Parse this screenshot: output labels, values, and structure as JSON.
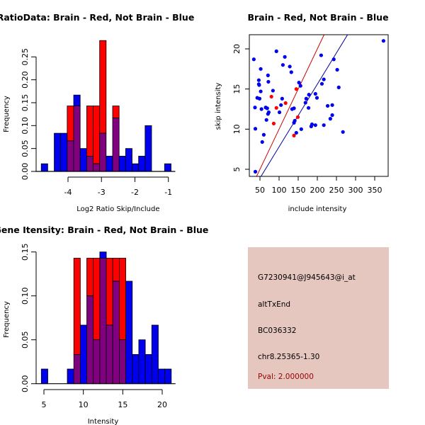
{
  "colors": {
    "brain": "#ff0000",
    "not_brain": "#0000ee",
    "overlap": "#800080",
    "panel_bg": "#e5c7c0",
    "pval_text": "#990000",
    "brain_line": "#cc0000",
    "not_brain_line": "#000099"
  },
  "chart_data": [
    {
      "id": "ratio-hist",
      "type": "bar",
      "title": "RatioData: Brain - Red, Not Brain - Blue",
      "xlabel": "Log2 Ratio Skip/Include",
      "ylabel": "Frequency",
      "xlim": [
        -4.8,
        -0.92
      ],
      "ylim": [
        0,
        0.29
      ],
      "xticks": [
        "-4",
        "-3",
        "-2",
        "-1"
      ],
      "xtick_values": [
        -4,
        -3,
        -2,
        -1
      ],
      "yticks": [
        "0.00",
        "0.05",
        "0.10",
        "0.15",
        "0.20",
        "0.25"
      ],
      "ytick_values": [
        0,
        0.05,
        0.1,
        0.15,
        0.2,
        0.25
      ],
      "bin_start": -4.8,
      "bin_width": 0.194,
      "series": [
        {
          "name": "Not Brain",
          "color": "blue",
          "values": [
            0.0167,
            0,
            0.0833,
            0.0833,
            0.0667,
            0.1667,
            0.05,
            0.0333,
            0.0167,
            0.0833,
            0.0333,
            0.1167,
            0.0333,
            0.05,
            0.0167,
            0.0333,
            0.1,
            0,
            0,
            0.0167
          ]
        },
        {
          "name": "Brain",
          "color": "red",
          "values": [
            0,
            0,
            0,
            0,
            0.1429,
            0.1429,
            0,
            0.1429,
            0.1429,
            0.2857,
            0,
            0.1429,
            0,
            0,
            0,
            0,
            0,
            0,
            0,
            0
          ]
        }
      ]
    },
    {
      "id": "intensity-scatter",
      "type": "scatter",
      "title": "Brain - Red, Not Brain - Blue",
      "xlabel": "include intensity",
      "ylabel": "skip intensity",
      "xlim": [
        27,
        390
      ],
      "ylim": [
        4,
        21.6
      ],
      "xticks": [
        "50",
        "100",
        "150",
        "200",
        "250",
        "300",
        "350"
      ],
      "xtick_values": [
        50,
        100,
        150,
        200,
        250,
        300,
        350
      ],
      "yticks": [
        "5",
        "10",
        "15",
        "20"
      ],
      "ytick_values": [
        5,
        10,
        15,
        20
      ],
      "series": [
        {
          "name": "Not Brain",
          "color": "blue",
          "points": [
            [
              34,
              18.7
            ],
            [
              37,
              12.7
            ],
            [
              38,
              10.05
            ],
            [
              38,
              4.7
            ],
            [
              93,
              19.7
            ],
            [
              115,
              19.0
            ],
            [
              110,
              18.0
            ],
            [
              52,
              17.5
            ],
            [
              128,
              17.8
            ],
            [
              132,
              17.1
            ],
            [
              71,
              16.7
            ],
            [
              47,
              16.1
            ],
            [
              72,
              15.9
            ],
            [
              47,
              15.6
            ],
            [
              48,
              15.5
            ],
            [
              52,
              14.7
            ],
            [
              84,
              14.8
            ],
            [
              43,
              13.9
            ],
            [
              49,
              13.8
            ],
            [
              108,
              13.8
            ],
            [
              105,
              13.0
            ],
            [
              65,
              12.7
            ],
            [
              69,
              12.6
            ],
            [
              54,
              12.5
            ],
            [
              73,
              12.1
            ],
            [
              71,
              11.9
            ],
            [
              101,
              12.1
            ],
            [
              67,
              11.15
            ],
            [
              60,
              9.3
            ],
            [
              56,
              8.4
            ],
            [
              152,
              15.8
            ],
            [
              156,
              15.4
            ],
            [
              134,
              12.5
            ],
            [
              139,
              12.6
            ],
            [
              139,
              10.8
            ],
            [
              141,
              11.05
            ],
            [
              145,
              9.55
            ],
            [
              158,
              10.0
            ],
            [
              169,
              13.3
            ],
            [
              171,
              13.8
            ],
            [
              178,
              14.3
            ],
            [
              177,
              12.65
            ],
            [
              184,
              10.35
            ],
            [
              186,
              10.6
            ],
            [
              195,
              10.5
            ],
            [
              195,
              14.4
            ],
            [
              199,
              13.9
            ],
            [
              210,
              19.2
            ],
            [
              212,
              15.65
            ],
            [
              217,
              16.2
            ],
            [
              217,
              10.5
            ],
            [
              227,
              12.9
            ],
            [
              234,
              11.3
            ],
            [
              239,
              13.0
            ],
            [
              239,
              11.75
            ],
            [
              243,
              18.7
            ],
            [
              252,
              17.4
            ],
            [
              256,
              15.2
            ],
            [
              267,
              9.65
            ],
            [
              373,
              21.0
            ]
          ]
        },
        {
          "name": "Brain",
          "color": "red",
          "points": [
            [
              80,
              14.05
            ],
            [
              93,
              12.65
            ],
            [
              117,
              13.25
            ],
            [
              86,
              10.7
            ],
            [
              145,
              15.0
            ],
            [
              149,
              11.5
            ],
            [
              139,
              9.2
            ]
          ]
        }
      ],
      "lines": [
        {
          "name": "Brain fit",
          "color": "red",
          "slope": 0.1,
          "intercept": 0.0
        },
        {
          "name": "Not Brain fit",
          "color": "blue",
          "slope": 0.078,
          "intercept": 0.0
        }
      ]
    },
    {
      "id": "gene-intensity-hist",
      "type": "bar",
      "title": "Gene Itensity: Brain - Red, Not Brain - Blue",
      "xlabel": "Intensity",
      "ylabel": "Frequency",
      "xlim": [
        4.67,
        21.15
      ],
      "ylim": [
        0,
        0.155
      ],
      "xticks": [
        "5",
        "10",
        "15",
        "20"
      ],
      "xtick_values": [
        5,
        10,
        15,
        20
      ],
      "yticks": [
        "0.00",
        "0.05",
        "0.10",
        "0.15"
      ],
      "ytick_values": [
        0,
        0.05,
        0.1,
        0.15
      ],
      "bin_start": 4.67,
      "bin_width": 0.824,
      "series": [
        {
          "name": "Not Brain",
          "color": "blue",
          "values": [
            0.0167,
            0,
            0,
            0,
            0.0167,
            0.0333,
            0.0667,
            0.1,
            0.05,
            0.15,
            0.0667,
            0.1167,
            0.05,
            0.1167,
            0.0333,
            0.05,
            0.0333,
            0.0667,
            0.0167,
            0.0167
          ]
        },
        {
          "name": "Brain",
          "color": "red",
          "values": [
            0,
            0,
            0,
            0,
            0,
            0.1429,
            0,
            0.1429,
            0.1429,
            0.1429,
            0.1429,
            0.1429,
            0.1429,
            0,
            0,
            0,
            0,
            0,
            0,
            0
          ]
        }
      ]
    }
  ],
  "info_panel": {
    "probe_id": "G7230941@J945643@i_at",
    "event_type": "altTxEnd",
    "accession": "BC036332",
    "location": "chr8.25365-1.30",
    "pval": "Pval: 2.000000"
  }
}
